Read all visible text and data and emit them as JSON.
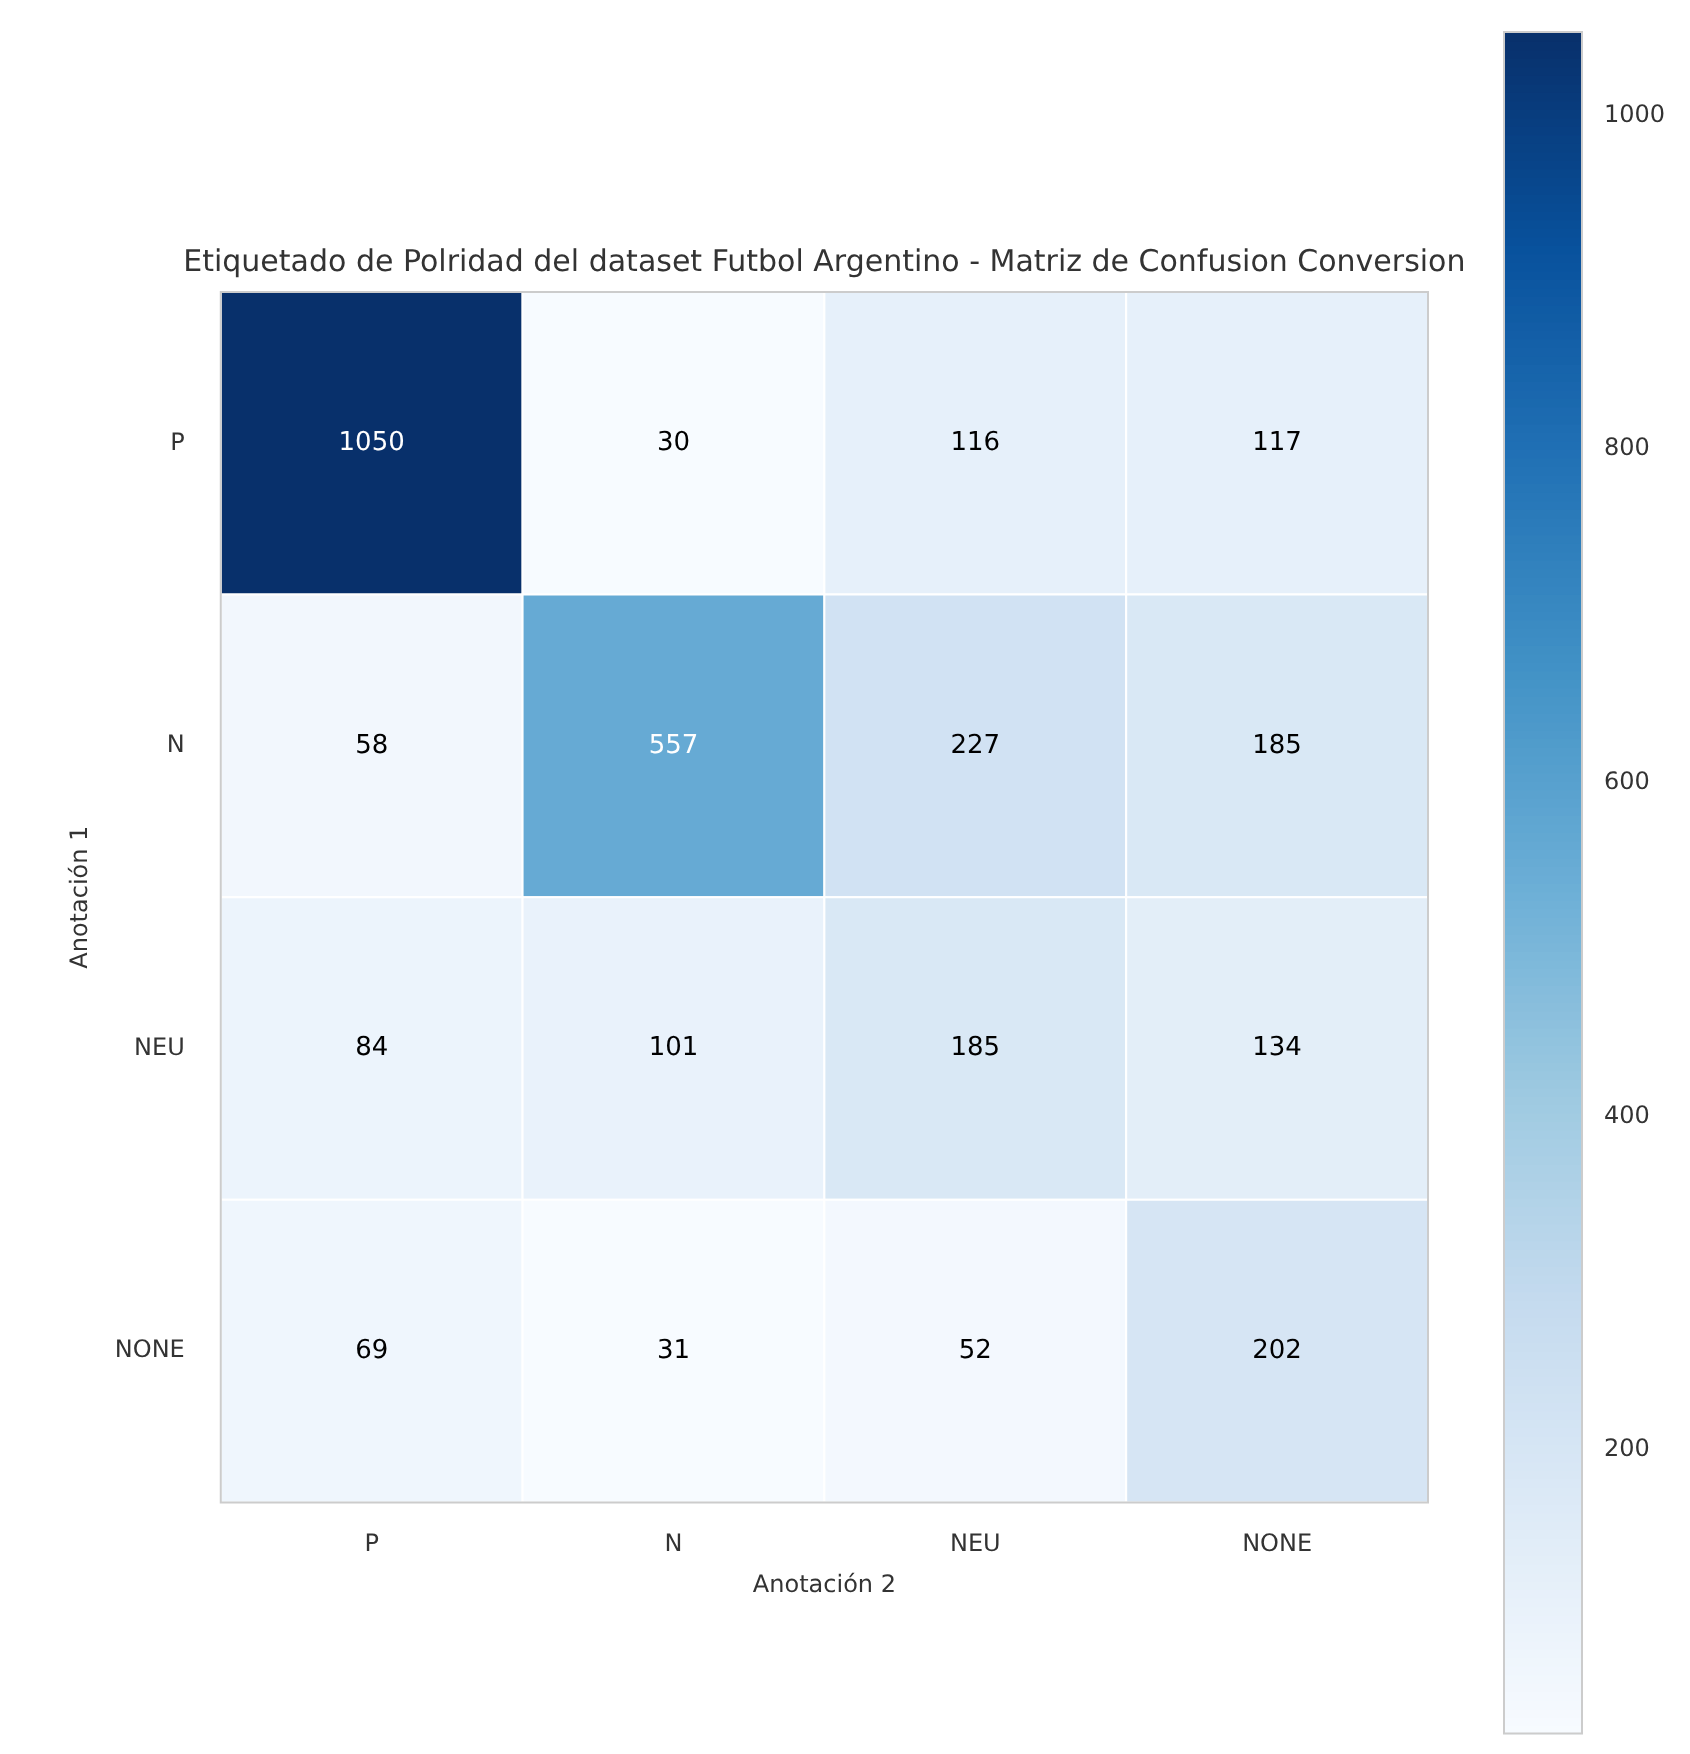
{
  "chart_data": {
    "type": "heatmap",
    "title": "Etiquetado de Polridad del dataset Futbol Argentino - Matriz de Confusion Conversion",
    "xlabel": "Anotación 2",
    "ylabel": "Anotación 1",
    "clabel": null,
    "categories": [
      "P",
      "N",
      "NEU",
      "NONE"
    ],
    "y_categories": [
      "P",
      "N",
      "NEU",
      "NONE"
    ],
    "cells": [
      [
        1050,
        30,
        116,
        117
      ],
      [
        58,
        557,
        227,
        185
      ],
      [
        84,
        101,
        185,
        134
      ],
      [
        69,
        31,
        52,
        202
      ]
    ],
    "data_labels": true,
    "clim": [
      30,
      1050
    ],
    "cticks": [
      200,
      400,
      600,
      800,
      1000
    ]
  }
}
